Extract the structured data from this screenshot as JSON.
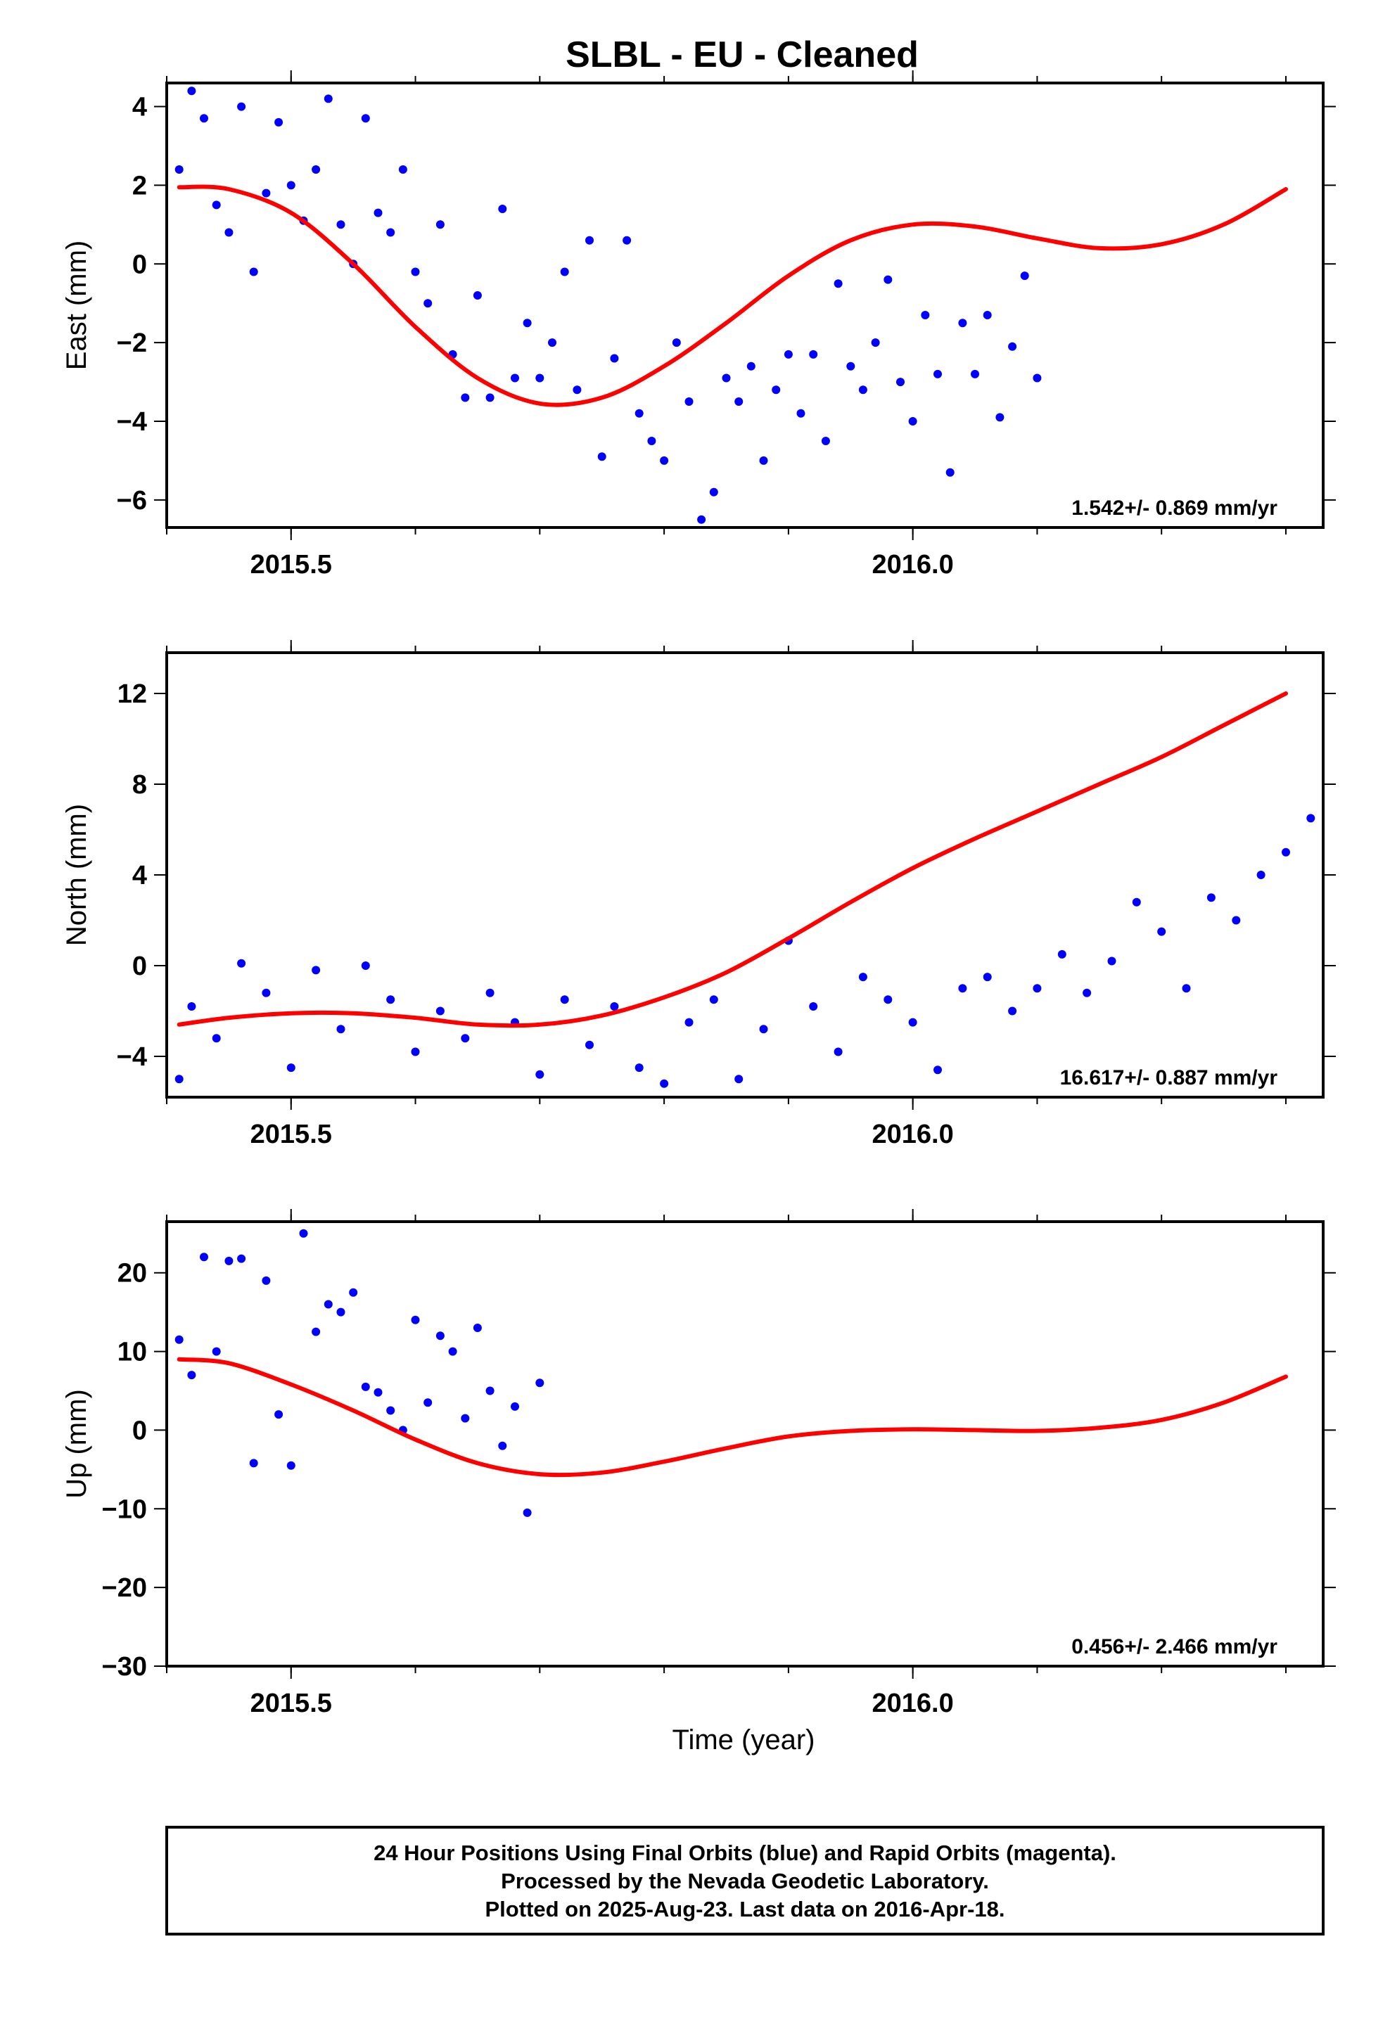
{
  "title": "SLBL  - EU - Cleaned",
  "x_axis_label": "Time (year)",
  "footer": {
    "lines": [
      "24 Hour Positions Using Final Orbits (blue) and Rapid Orbits (magenta).",
      "Processed by the Nevada Geodetic Laboratory.",
      "Plotted on 2025-Aug-23. Last data on 2016-Apr-18."
    ]
  },
  "colors": {
    "points": "#0000ff",
    "fit": "#ff0000",
    "frame": "#000000"
  },
  "chart_data": [
    {
      "type": "scatter",
      "name": "east",
      "ylabel": "East (mm)",
      "xlim": [
        2015.4,
        2016.33
      ],
      "ylim": [
        -6.7,
        4.6
      ],
      "xticks": [
        2015.5,
        2016.0
      ],
      "xtick_labels": [
        "2015.5",
        "2016.0"
      ],
      "yticks": [
        -6,
        -4,
        -2,
        0,
        2,
        4
      ],
      "ytick_labels": [
        "−6",
        "−4",
        "−2",
        "0",
        "2",
        "4"
      ],
      "rate_label": "1.542+/- 0.869 mm/yr",
      "fit": {
        "x": [
          2015.41,
          2015.45,
          2015.5,
          2015.55,
          2015.6,
          2015.65,
          2015.7,
          2015.75,
          2015.8,
          2015.85,
          2015.9,
          2015.95,
          2016.0,
          2016.05,
          2016.1,
          2016.15,
          2016.2,
          2016.25,
          2016.3
        ],
        "y": [
          1.95,
          1.9,
          1.3,
          0.0,
          -1.6,
          -2.9,
          -3.55,
          -3.4,
          -2.6,
          -1.5,
          -0.3,
          0.6,
          1.0,
          0.95,
          0.65,
          0.4,
          0.5,
          1.0,
          1.9
        ]
      },
      "values": [
        [
          2015.41,
          2.4
        ],
        [
          2015.42,
          4.4
        ],
        [
          2015.43,
          3.7
        ],
        [
          2015.44,
          1.5
        ],
        [
          2015.45,
          0.8
        ],
        [
          2015.46,
          4.0
        ],
        [
          2015.47,
          -0.2
        ],
        [
          2015.48,
          1.8
        ],
        [
          2015.49,
          3.6
        ],
        [
          2015.5,
          2.0
        ],
        [
          2015.51,
          1.1
        ],
        [
          2015.52,
          2.4
        ],
        [
          2015.53,
          4.2
        ],
        [
          2015.54,
          1.0
        ],
        [
          2015.55,
          0.0
        ],
        [
          2015.56,
          3.7
        ],
        [
          2015.57,
          1.3
        ],
        [
          2015.58,
          0.8
        ],
        [
          2015.59,
          2.4
        ],
        [
          2015.6,
          -0.2
        ],
        [
          2015.61,
          -1.0
        ],
        [
          2015.62,
          1.0
        ],
        [
          2015.63,
          -2.3
        ],
        [
          2015.64,
          -3.4
        ],
        [
          2015.65,
          -0.8
        ],
        [
          2015.66,
          -3.4
        ],
        [
          2015.67,
          1.4
        ],
        [
          2015.68,
          -2.9
        ],
        [
          2015.69,
          -1.5
        ],
        [
          2015.7,
          -2.9
        ],
        [
          2015.71,
          -2.0
        ],
        [
          2015.72,
          -0.2
        ],
        [
          2015.73,
          -3.2
        ],
        [
          2015.74,
          0.6
        ],
        [
          2015.75,
          -4.9
        ],
        [
          2015.76,
          -2.4
        ],
        [
          2015.77,
          0.6
        ],
        [
          2015.78,
          -3.8
        ],
        [
          2015.79,
          -4.5
        ],
        [
          2015.8,
          -5.0
        ],
        [
          2015.81,
          -2.0
        ],
        [
          2015.82,
          -3.5
        ],
        [
          2015.83,
          -6.5
        ],
        [
          2015.84,
          -5.8
        ],
        [
          2015.85,
          -2.9
        ],
        [
          2015.86,
          -3.5
        ],
        [
          2015.87,
          -2.6
        ],
        [
          2015.88,
          -5.0
        ],
        [
          2015.89,
          -3.2
        ],
        [
          2015.9,
          -2.3
        ],
        [
          2015.91,
          -3.8
        ],
        [
          2015.92,
          -2.3
        ],
        [
          2015.93,
          -4.5
        ],
        [
          2015.94,
          -0.5
        ],
        [
          2015.95,
          -2.6
        ],
        [
          2015.96,
          -3.2
        ],
        [
          2015.97,
          -2.0
        ],
        [
          2015.98,
          -0.4
        ],
        [
          2015.99,
          -3.0
        ],
        [
          2016.0,
          -4.0
        ],
        [
          2016.01,
          -1.3
        ],
        [
          2016.02,
          -2.8
        ],
        [
          2016.03,
          -5.3
        ],
        [
          2016.04,
          -1.5
        ],
        [
          2016.05,
          -2.8
        ],
        [
          2016.06,
          -1.3
        ],
        [
          2016.07,
          -3.9
        ],
        [
          2016.08,
          -2.1
        ],
        [
          2016.09,
          -0.3
        ],
        [
          2016.1,
          -2.9
        ]
      ]
    },
    {
      "type": "scatter",
      "name": "north",
      "ylabel": "North (mm)",
      "xlim": [
        2015.4,
        2016.33
      ],
      "ylim": [
        -5.8,
        13.8
      ],
      "xticks": [
        2015.5,
        2016.0
      ],
      "xtick_labels": [
        "2015.5",
        "2016.0"
      ],
      "yticks": [
        -4,
        0,
        4,
        8,
        12
      ],
      "ytick_labels": [
        "−4",
        "0",
        "4",
        "8",
        "12"
      ],
      "rate_label": "16.617+/- 0.887 mm/yr",
      "fit": {
        "x": [
          2015.41,
          2015.45,
          2015.5,
          2015.55,
          2015.6,
          2015.65,
          2015.7,
          2015.75,
          2015.8,
          2015.85,
          2015.9,
          2015.95,
          2016.0,
          2016.05,
          2016.1,
          2016.15,
          2016.2,
          2016.25,
          2016.3
        ],
        "y": [
          -2.6,
          -2.3,
          -2.1,
          -2.1,
          -2.3,
          -2.6,
          -2.6,
          -2.2,
          -1.4,
          -0.3,
          1.2,
          2.8,
          4.3,
          5.6,
          6.8,
          8.0,
          9.2,
          10.6,
          12.0
        ]
      },
      "values": [
        [
          2015.41,
          -5.0
        ],
        [
          2015.42,
          -1.8
        ],
        [
          2015.44,
          -3.2
        ],
        [
          2015.46,
          0.1
        ],
        [
          2015.48,
          -1.2
        ],
        [
          2015.5,
          -4.5
        ],
        [
          2015.52,
          -0.2
        ],
        [
          2015.54,
          -2.8
        ],
        [
          2015.56,
          0.0
        ],
        [
          2015.58,
          -1.5
        ],
        [
          2015.6,
          -3.8
        ],
        [
          2015.62,
          -2.0
        ],
        [
          2015.64,
          -3.2
        ],
        [
          2015.66,
          -1.2
        ],
        [
          2015.68,
          -2.5
        ],
        [
          2015.7,
          -4.8
        ],
        [
          2015.72,
          -1.5
        ],
        [
          2015.74,
          -3.5
        ],
        [
          2015.76,
          -1.8
        ],
        [
          2015.78,
          -4.5
        ],
        [
          2015.8,
          -5.2
        ],
        [
          2015.82,
          -2.5
        ],
        [
          2015.84,
          -1.5
        ],
        [
          2015.86,
          -5.0
        ],
        [
          2015.88,
          -2.8
        ],
        [
          2015.9,
          1.1
        ],
        [
          2015.92,
          -1.8
        ],
        [
          2015.94,
          -3.8
        ],
        [
          2015.96,
          -0.5
        ],
        [
          2015.98,
          -1.5
        ],
        [
          2016.0,
          -2.5
        ],
        [
          2016.02,
          -4.6
        ],
        [
          2016.04,
          -1.0
        ],
        [
          2016.06,
          -0.5
        ],
        [
          2016.08,
          -2.0
        ],
        [
          2016.1,
          -1.0
        ],
        [
          2016.12,
          0.5
        ],
        [
          2016.14,
          -1.2
        ],
        [
          2016.16,
          0.2
        ],
        [
          2016.18,
          2.8
        ],
        [
          2016.2,
          1.5
        ],
        [
          2016.22,
          -1.0
        ],
        [
          2016.24,
          3.0
        ],
        [
          2016.26,
          2.0
        ],
        [
          2016.28,
          4.0
        ],
        [
          2016.3,
          5.0
        ],
        [
          2016.32,
          6.5
        ]
      ]
    },
    {
      "type": "scatter",
      "name": "up",
      "ylabel": "Up (mm)",
      "xlim": [
        2015.4,
        2016.33
      ],
      "ylim": [
        -30,
        26.5
      ],
      "xticks": [
        2015.5,
        2016.0
      ],
      "xtick_labels": [
        "2015.5",
        "2016.0"
      ],
      "yticks": [
        -30,
        -20,
        -10,
        0,
        10,
        20
      ],
      "ytick_labels": [
        "−30",
        "−20",
        "−10",
        "0",
        "10",
        "20"
      ],
      "rate_label": "0.456+/- 2.466 mm/yr",
      "fit": {
        "x": [
          2015.41,
          2015.45,
          2015.5,
          2015.55,
          2015.6,
          2015.65,
          2015.7,
          2015.75,
          2015.8,
          2015.85,
          2015.9,
          2015.95,
          2016.0,
          2016.05,
          2016.1,
          2016.15,
          2016.2,
          2016.25,
          2016.3
        ],
        "y": [
          9.0,
          8.5,
          5.8,
          2.5,
          -1.2,
          -4.2,
          -5.6,
          -5.4,
          -4.0,
          -2.3,
          -0.8,
          -0.1,
          0.1,
          0.0,
          -0.1,
          0.3,
          1.3,
          3.5,
          6.8
        ]
      },
      "values": [
        [
          2015.41,
          11.5
        ],
        [
          2015.42,
          7.0
        ],
        [
          2015.43,
          22.0
        ],
        [
          2015.44,
          10.0
        ],
        [
          2015.45,
          21.5
        ],
        [
          2015.46,
          21.8
        ],
        [
          2015.47,
          -4.2
        ],
        [
          2015.48,
          19.0
        ],
        [
          2015.49,
          2.0
        ],
        [
          2015.5,
          -4.5
        ],
        [
          2015.51,
          25.0
        ],
        [
          2015.52,
          12.5
        ],
        [
          2015.53,
          16.0
        ],
        [
          2015.54,
          15.0
        ],
        [
          2015.55,
          17.5
        ],
        [
          2015.56,
          5.5
        ],
        [
          2015.57,
          4.8
        ],
        [
          2015.58,
          2.5
        ],
        [
          2015.59,
          0.0
        ],
        [
          2015.6,
          14.0
        ],
        [
          2015.61,
          3.5
        ],
        [
          2015.62,
          12.0
        ],
        [
          2015.63,
          10.0
        ],
        [
          2015.64,
          1.5
        ],
        [
          2015.65,
          13.0
        ],
        [
          2015.66,
          5.0
        ],
        [
          2015.67,
          -2.0
        ],
        [
          2015.68,
          3.0
        ],
        [
          2015.69,
          -10.5
        ],
        [
          2015.7,
          6.0
        ]
      ]
    }
  ]
}
